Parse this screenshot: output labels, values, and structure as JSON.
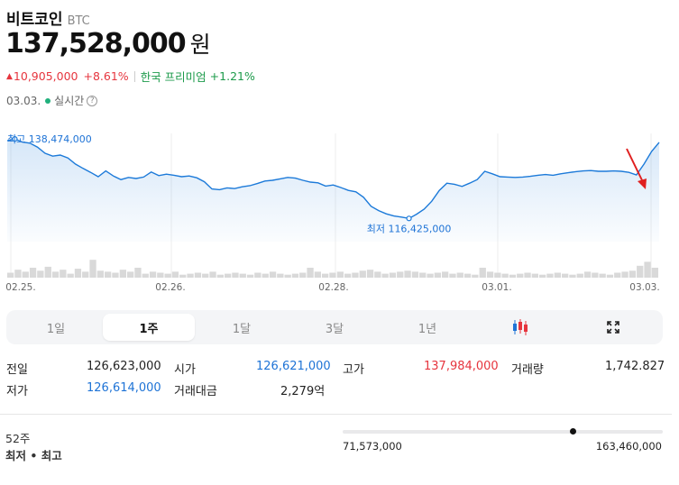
{
  "header": {
    "coin_name": "비트코인",
    "symbol": "BTC",
    "price": "137,528,000",
    "unit": "원",
    "change_arrow": "▲",
    "change_amount": "10,905,000",
    "change_pct": "+8.61%",
    "premium_label": "한국 프리미엄",
    "premium_value": "+1.21%",
    "date": "03.03.",
    "live_label": "실시간",
    "help_glyph": "?"
  },
  "colors": {
    "up": "#e6353e",
    "down": "#1e73d6",
    "line": "#1c7ad9",
    "premium": "#1d9b4b"
  },
  "chart_data": {
    "type": "line",
    "x_ticks": [
      "02.25.",
      "02.26.",
      "02.28.",
      "03.01.",
      "03.03."
    ],
    "annotations": {
      "high": "최고 138,474,000",
      "low": "최저 116,425,000"
    },
    "ylim": [
      110000000,
      142000000
    ],
    "values": [
      138000000,
      138474000,
      137600000,
      137300000,
      136200000,
      134500000,
      133700000,
      134000000,
      133200000,
      131500000,
      130300000,
      129200000,
      128000000,
      129600000,
      128200000,
      127200000,
      127800000,
      127500000,
      127900000,
      129300000,
      128300000,
      128700000,
      128400000,
      128000000,
      128200000,
      127700000,
      126600000,
      124600000,
      124400000,
      124900000,
      124700000,
      125200000,
      125500000,
      126100000,
      126800000,
      127000000,
      127400000,
      127800000,
      127600000,
      127000000,
      126500000,
      126300000,
      125400000,
      125700000,
      125000000,
      124200000,
      123800000,
      122300000,
      119800000,
      118600000,
      117700000,
      117100000,
      116800000,
      116425000,
      117600000,
      119000000,
      121200000,
      124200000,
      126200000,
      125900000,
      125300000,
      126200000,
      127200000,
      129500000,
      128800000,
      128000000,
      127900000,
      127800000,
      127900000,
      128100000,
      128400000,
      128600000,
      128400000,
      128800000,
      129100000,
      129400000,
      129600000,
      129700000,
      129500000,
      129500000,
      129600000,
      129500000,
      129200000,
      128500000,
      131500000,
      135000000,
      137528000
    ],
    "volume": [
      0.25,
      0.4,
      0.3,
      0.5,
      0.35,
      0.55,
      0.3,
      0.4,
      0.2,
      0.45,
      0.3,
      0.9,
      0.35,
      0.3,
      0.25,
      0.4,
      0.3,
      0.5,
      0.2,
      0.3,
      0.25,
      0.2,
      0.3,
      0.15,
      0.2,
      0.25,
      0.2,
      0.3,
      0.15,
      0.2,
      0.25,
      0.2,
      0.15,
      0.25,
      0.2,
      0.3,
      0.2,
      0.15,
      0.2,
      0.25,
      0.5,
      0.3,
      0.2,
      0.25,
      0.3,
      0.2,
      0.25,
      0.35,
      0.4,
      0.3,
      0.2,
      0.25,
      0.3,
      0.35,
      0.3,
      0.25,
      0.2,
      0.25,
      0.3,
      0.2,
      0.25,
      0.2,
      0.15,
      0.5,
      0.3,
      0.25,
      0.2,
      0.15,
      0.2,
      0.25,
      0.2,
      0.15,
      0.2,
      0.25,
      0.2,
      0.15,
      0.2,
      0.3,
      0.25,
      0.2,
      0.15,
      0.25,
      0.3,
      0.35,
      0.6,
      0.8,
      0.5
    ]
  },
  "tabs": [
    {
      "label": "1일",
      "active": false
    },
    {
      "label": "1주",
      "active": true
    },
    {
      "label": "1달",
      "active": false
    },
    {
      "label": "3달",
      "active": false
    },
    {
      "label": "1년",
      "active": false
    },
    {
      "icon": "candlestick-chart-icon"
    },
    {
      "icon": "fullscreen-icon"
    }
  ],
  "stats": {
    "prev_close_label": "전일",
    "prev_close": "126,623,000",
    "open_label": "시가",
    "open": "126,621,000",
    "high_label": "고가",
    "high": "137,984,000",
    "volume_label": "거래량",
    "volume": "1,742.827",
    "low_label": "저가",
    "low": "126,614,000",
    "trade_value_label": "거래대금",
    "trade_value": "2,279억"
  },
  "week52": {
    "label_line1": "52주",
    "label_line2": "최저 • 최고",
    "low": "71,573,000",
    "high": "163,460,000",
    "position": 0.72
  }
}
